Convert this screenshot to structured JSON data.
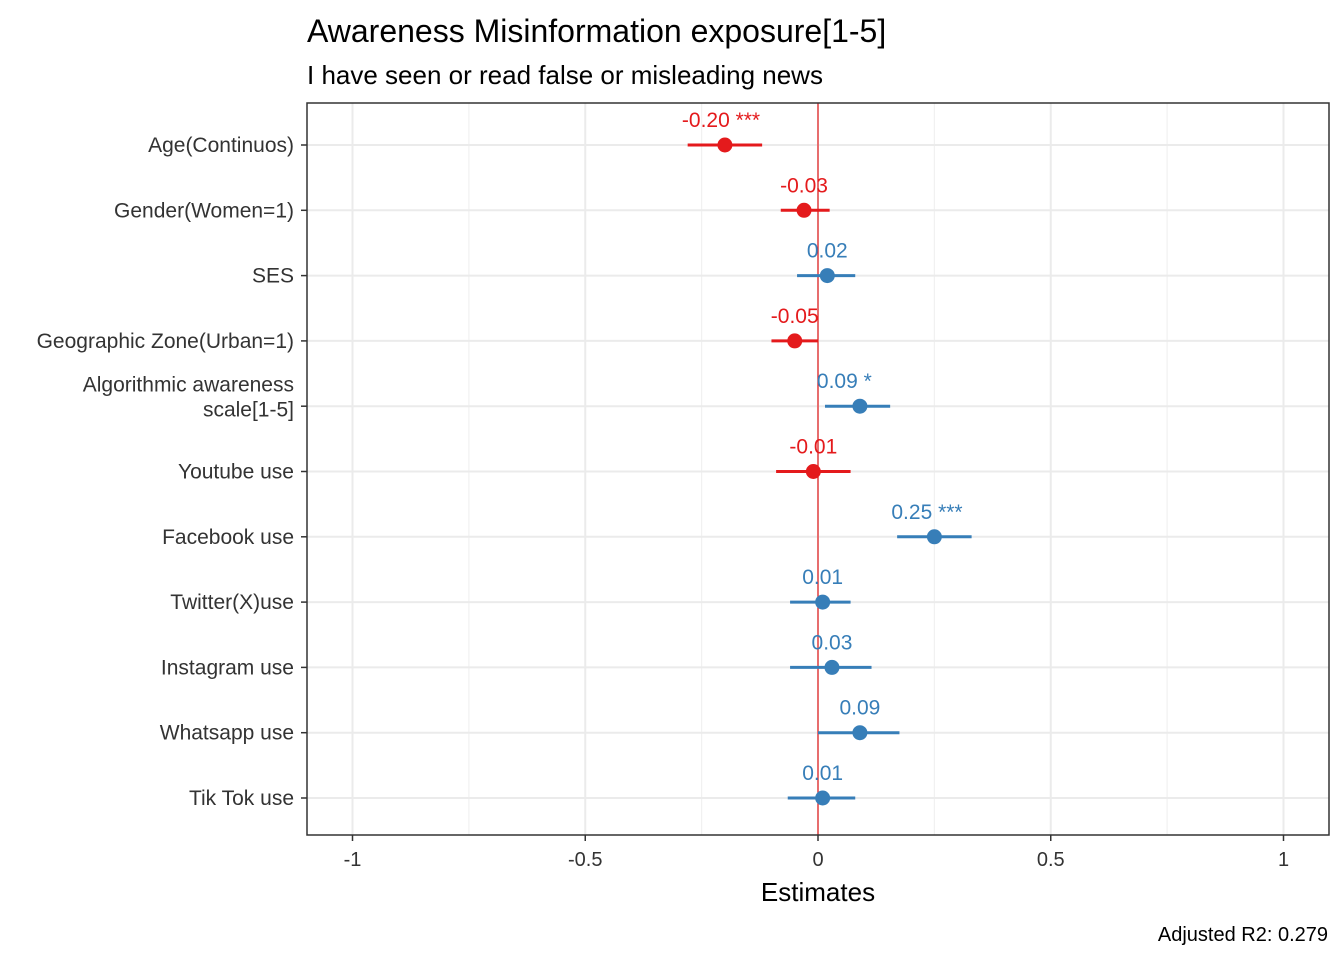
{
  "chart_data": {
    "type": "scatter",
    "title": "Awareness Misinformation exposure[1-5]",
    "subtitle": "I have seen or read false or misleading news",
    "xlabel": "Estimates",
    "ylabel": "",
    "xlim": [
      -1.1,
      1.1
    ],
    "xticks": [
      -1,
      -0.5,
      0,
      0.5,
      1
    ],
    "xtick_labels": [
      "-1",
      "-0.5",
      "0",
      "0.5",
      "1"
    ],
    "grid": true,
    "reference_line": 0,
    "caption": "Adjusted R2: 0.279",
    "colors": {
      "negative": "#e41a1c",
      "positive": "#377eb8",
      "zero_line": "#e41a1c"
    },
    "terms": [
      {
        "label": [
          "Age(Continuos)"
        ],
        "estimate": -0.2,
        "ci": [
          -0.28,
          -0.12
        ],
        "text": "-0.20 ***"
      },
      {
        "label": [
          "Gender(Women=1)"
        ],
        "estimate": -0.03,
        "ci": [
          -0.08,
          0.025
        ],
        "text": "-0.03"
      },
      {
        "label": [
          "SES"
        ],
        "estimate": 0.02,
        "ci": [
          -0.045,
          0.08
        ],
        "text": "0.02"
      },
      {
        "label": [
          "Geographic Zone(Urban=1)"
        ],
        "estimate": -0.05,
        "ci": [
          -0.1,
          0.0
        ],
        "text": "-0.05"
      },
      {
        "label": [
          "Algorithmic awareness",
          "scale[1-5]"
        ],
        "estimate": 0.09,
        "ci": [
          0.015,
          0.155
        ],
        "text": "0.09 *"
      },
      {
        "label": [
          "Youtube use"
        ],
        "estimate": -0.01,
        "ci": [
          -0.09,
          0.07
        ],
        "text": "-0.01"
      },
      {
        "label": [
          "Facebook use"
        ],
        "estimate": 0.25,
        "ci": [
          0.17,
          0.33
        ],
        "text": "0.25 ***"
      },
      {
        "label": [
          "Twitter(X)use"
        ],
        "estimate": 0.01,
        "ci": [
          -0.06,
          0.07
        ],
        "text": "0.01"
      },
      {
        "label": [
          "Instagram use"
        ],
        "estimate": 0.03,
        "ci": [
          -0.06,
          0.115
        ],
        "text": "0.03"
      },
      {
        "label": [
          "Whatsapp use"
        ],
        "estimate": 0.09,
        "ci": [
          0.0,
          0.175
        ],
        "text": "0.09"
      },
      {
        "label": [
          "Tik Tok use"
        ],
        "estimate": 0.01,
        "ci": [
          -0.065,
          0.08
        ],
        "text": "0.01"
      }
    ]
  }
}
